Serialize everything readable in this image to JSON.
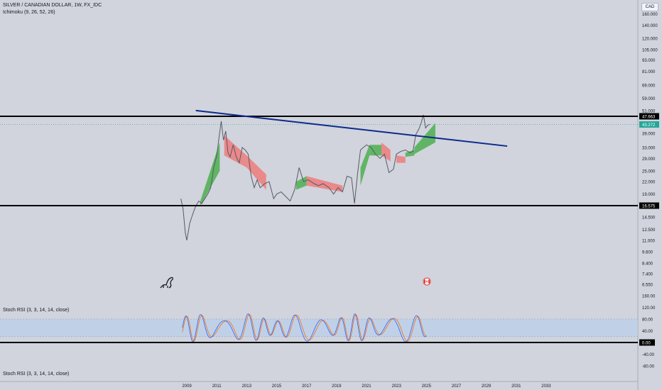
{
  "header": {
    "symbol": "SILVER / CANADIAN DOLLAR, 1W, FX_IDC",
    "ichimoku": "Ichimoku (9, 26, 52, 26)",
    "stoch1": "Stoch RSI (3, 3, 14, 14, close)",
    "stoch2": "Stoch RSI (3, 3, 14, 14, close)",
    "currency": "CAD"
  },
  "colors": {
    "background": "#d1d4dc",
    "trendline": "#0d2a8c",
    "hline": "#000000",
    "cloud_bull": "#4caf50",
    "cloud_bear": "#ef7b7b",
    "price_line": "#555a66",
    "stoch_k": "#2962ff",
    "stoch_d": "#ff6d00",
    "rsi_band": "#bcd0ea",
    "last_price_badge": "#26a69a"
  },
  "chart_data": {
    "type": "line",
    "price_scale": "log",
    "y_ticks_price": [
      "160.000",
      "140.000",
      "120.000",
      "105.000",
      "93.000",
      "81.000",
      "69.000",
      "59.000",
      "51.000",
      "39.000",
      "33.000",
      "29.000",
      "25.000",
      "22.000",
      "19.000",
      "14.500",
      "12.500",
      "11.000",
      "9.600",
      "8.400",
      "7.400",
      "6.550"
    ],
    "x_ticks": [
      "2009",
      "2011",
      "2013",
      "2015",
      "2017",
      "2019",
      "2021",
      "2023",
      "2025",
      "2027",
      "2029",
      "2031",
      "2033"
    ],
    "horizontal_levels": [
      {
        "price": 47.663,
        "label": "47.663"
      },
      {
        "price": 16.575,
        "label": "16.575"
      }
    ],
    "last_price": {
      "value": 43.272,
      "label": "43.272"
    },
    "trendline": {
      "start": {
        "x": 2009.6,
        "y": 51.0
      },
      "end": {
        "x": 2030.4,
        "y": 33.5
      }
    },
    "price_series": [
      [
        2008.6,
        18.0
      ],
      [
        2008.75,
        16.0
      ],
      [
        2008.9,
        12.0
      ],
      [
        2009.0,
        11.0
      ],
      [
        2009.2,
        13.5
      ],
      [
        2009.4,
        15.0
      ],
      [
        2009.6,
        16.5
      ],
      [
        2009.8,
        17.5
      ],
      [
        2010.0,
        17.0
      ],
      [
        2010.2,
        18.0
      ],
      [
        2010.4,
        19.0
      ],
      [
        2010.6,
        20.5
      ],
      [
        2010.8,
        26.0
      ],
      [
        2011.0,
        30.0
      ],
      [
        2011.15,
        37.0
      ],
      [
        2011.3,
        45.0
      ],
      [
        2011.45,
        36.0
      ],
      [
        2011.6,
        40.0
      ],
      [
        2011.75,
        31.0
      ],
      [
        2011.9,
        29.5
      ],
      [
        2012.1,
        34.0
      ],
      [
        2012.3,
        29.5
      ],
      [
        2012.5,
        27.5
      ],
      [
        2012.7,
        33.0
      ],
      [
        2012.9,
        32.0
      ],
      [
        2013.1,
        30.5
      ],
      [
        2013.3,
        23.5
      ],
      [
        2013.5,
        20.5
      ],
      [
        2013.7,
        22.5
      ],
      [
        2013.9,
        20.5
      ],
      [
        2014.2,
        21.5
      ],
      [
        2014.5,
        22.0
      ],
      [
        2014.8,
        18.0
      ],
      [
        2015.0,
        19.0
      ],
      [
        2015.3,
        19.5
      ],
      [
        2015.6,
        18.5
      ],
      [
        2015.9,
        17.5
      ],
      [
        2016.2,
        20.0
      ],
      [
        2016.5,
        26.0
      ],
      [
        2016.8,
        22.0
      ],
      [
        2017.1,
        22.5
      ],
      [
        2017.5,
        21.5
      ],
      [
        2017.8,
        21.0
      ],
      [
        2018.1,
        21.5
      ],
      [
        2018.5,
        20.5
      ],
      [
        2018.8,
        19.0
      ],
      [
        2019.1,
        20.5
      ],
      [
        2019.4,
        19.5
      ],
      [
        2019.7,
        23.5
      ],
      [
        2020.0,
        23.0
      ],
      [
        2020.2,
        17.0
      ],
      [
        2020.4,
        24.0
      ],
      [
        2020.6,
        32.0
      ],
      [
        2020.8,
        33.0
      ],
      [
        2021.0,
        34.0
      ],
      [
        2021.3,
        33.0
      ],
      [
        2021.6,
        30.5
      ],
      [
        2021.9,
        29.0
      ],
      [
        2022.2,
        30.5
      ],
      [
        2022.5,
        24.5
      ],
      [
        2022.8,
        25.5
      ],
      [
        2023.0,
        30.5
      ],
      [
        2023.3,
        31.5
      ],
      [
        2023.6,
        32.0
      ],
      [
        2023.9,
        31.0
      ],
      [
        2024.1,
        31.5
      ],
      [
        2024.3,
        38.5
      ],
      [
        2024.5,
        41.0
      ],
      [
        2024.65,
        44.0
      ],
      [
        2024.8,
        48.5
      ],
      [
        2024.95,
        41.5
      ],
      [
        2025.1,
        43.0
      ],
      [
        2025.25,
        43.272
      ]
    ],
    "ichimoku_cloud": [
      {
        "from": 2009.9,
        "to": 2011.2,
        "top": [
          17.5,
          35.0
        ],
        "bottom": [
          16.5,
          25.0
        ],
        "bias": "bull"
      },
      {
        "from": 2011.5,
        "to": 2013.0,
        "top": [
          38.0,
          30.0
        ],
        "bottom": [
          30.0,
          26.0
        ],
        "bias": "bear"
      },
      {
        "from": 2013.0,
        "to": 2014.3,
        "top": [
          30.0,
          24.0
        ],
        "bottom": [
          26.0,
          20.0
        ],
        "bias": "bear"
      },
      {
        "from": 2016.3,
        "to": 2017.0,
        "top": [
          22.0,
          23.5
        ],
        "bottom": [
          20.0,
          21.0
        ],
        "bias": "bull"
      },
      {
        "from": 2017.0,
        "to": 2019.4,
        "top": [
          23.5,
          21.0
        ],
        "bottom": [
          21.0,
          19.5
        ],
        "bias": "bear"
      },
      {
        "from": 2020.6,
        "to": 2021.2,
        "top": [
          26.0,
          34.0
        ],
        "bottom": [
          21.0,
          30.0
        ],
        "bias": "bull"
      },
      {
        "from": 2021.2,
        "to": 2022.0,
        "top": [
          34.0,
          34.0
        ],
        "bottom": [
          30.0,
          30.0
        ],
        "bias": "bull"
      },
      {
        "from": 2022.0,
        "to": 2022.6,
        "top": [
          35.0,
          32.0
        ],
        "bottom": [
          30.0,
          28.0
        ],
        "bias": "bear"
      },
      {
        "from": 2023.0,
        "to": 2023.6,
        "top": [
          30.0,
          29.5
        ],
        "bottom": [
          27.5,
          27.5
        ],
        "bias": "bear"
      },
      {
        "from": 2023.6,
        "to": 2024.2,
        "top": [
          31.0,
          32.0
        ],
        "bottom": [
          29.5,
          30.0
        ],
        "bias": "bull"
      },
      {
        "from": 2024.2,
        "to": 2025.6,
        "top": [
          33.0,
          44.0
        ],
        "bottom": [
          30.5,
          35.0
        ],
        "bias": "bull"
      }
    ],
    "stoch_y_ticks": [
      "160.00",
      "120.00",
      "80.00",
      "40.00",
      "0.00",
      "-40.00",
      "-80.00"
    ],
    "stoch_level": {
      "value": 0,
      "label": "0.00"
    },
    "stoch_band": [
      20,
      80
    ],
    "stoch_range": [
      2008.7,
      2025.0
    ]
  }
}
